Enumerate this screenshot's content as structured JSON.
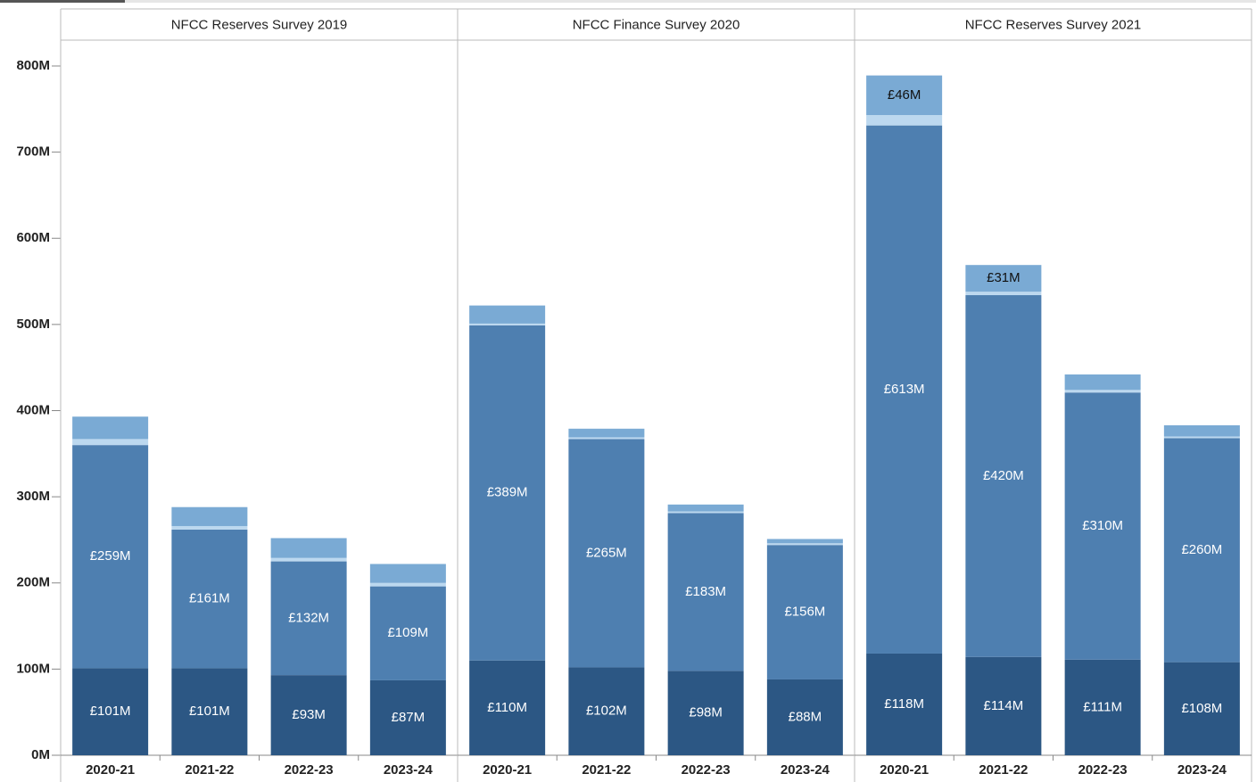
{
  "chart_data": [
    {
      "type": "bar",
      "stacked": true,
      "title": "NFCC Reserves Survey 2019",
      "categories": [
        "2020-21",
        "2021-22",
        "2022-23",
        "2023-24"
      ],
      "ylim": [
        0,
        830
      ],
      "yticks": [
        {
          "value": 0,
          "label": "0M"
        },
        {
          "value": 100,
          "label": "100M"
        },
        {
          "value": 200,
          "label": "200M"
        },
        {
          "value": 300,
          "label": "300M"
        },
        {
          "value": 400,
          "label": "400M"
        },
        {
          "value": 500,
          "label": "500M"
        },
        {
          "value": 600,
          "label": "600M"
        },
        {
          "value": 700,
          "label": "700M"
        },
        {
          "value": 800,
          "label": "800M"
        }
      ],
      "series": [
        {
          "color": "#2c5784",
          "values": [
            101,
            101,
            93,
            87
          ],
          "value_labels": [
            "£101M",
            "£101M",
            "£93M",
            "£87M"
          ]
        },
        {
          "color": "#4e7fb0",
          "values": [
            259,
            161,
            132,
            109
          ],
          "value_labels": [
            "£259M",
            "£161M",
            "£132M",
            "£109M"
          ]
        },
        {
          "color": "#bcd8ef",
          "values": [
            7,
            4,
            4,
            4
          ]
        },
        {
          "color": "#7aaad4",
          "values": [
            26,
            22,
            23,
            22
          ]
        }
      ]
    },
    {
      "type": "bar",
      "stacked": true,
      "title": "NFCC Finance Survey 2020",
      "categories": [
        "2020-21",
        "2021-22",
        "2022-23",
        "2023-24"
      ],
      "ylim": [
        0,
        830
      ],
      "series": [
        {
          "color": "#2c5784",
          "values": [
            110,
            102,
            98,
            88
          ],
          "value_labels": [
            "£110M",
            "£102M",
            "£98M",
            "£88M"
          ]
        },
        {
          "color": "#4e7fb0",
          "values": [
            389,
            265,
            183,
            156
          ],
          "value_labels": [
            "£389M",
            "£265M",
            "£183M",
            "£156M"
          ]
        },
        {
          "color": "#bcd8ef",
          "values": [
            2,
            2,
            2,
            2
          ]
        },
        {
          "color": "#7aaad4",
          "values": [
            21,
            10,
            8,
            5
          ]
        }
      ]
    },
    {
      "type": "bar",
      "stacked": true,
      "title": "NFCC Reserves Survey 2021",
      "categories": [
        "2020-21",
        "2021-22",
        "2022-23",
        "2023-24"
      ],
      "ylim": [
        0,
        830
      ],
      "series": [
        {
          "color": "#2c5784",
          "values": [
            118,
            114,
            111,
            108
          ],
          "value_labels": [
            "£118M",
            "£114M",
            "£111M",
            "£108M"
          ]
        },
        {
          "color": "#4e7fb0",
          "values": [
            613,
            420,
            310,
            260
          ],
          "value_labels": [
            "£613M",
            "£420M",
            "£310M",
            "£260M"
          ]
        },
        {
          "color": "#bcd8ef",
          "values": [
            12,
            4,
            3,
            2
          ]
        },
        {
          "color": "#7aaad4",
          "values": [
            46,
            31,
            18,
            13
          ],
          "value_labels": [
            "£46M",
            "£31M",
            null,
            null
          ]
        }
      ]
    }
  ]
}
